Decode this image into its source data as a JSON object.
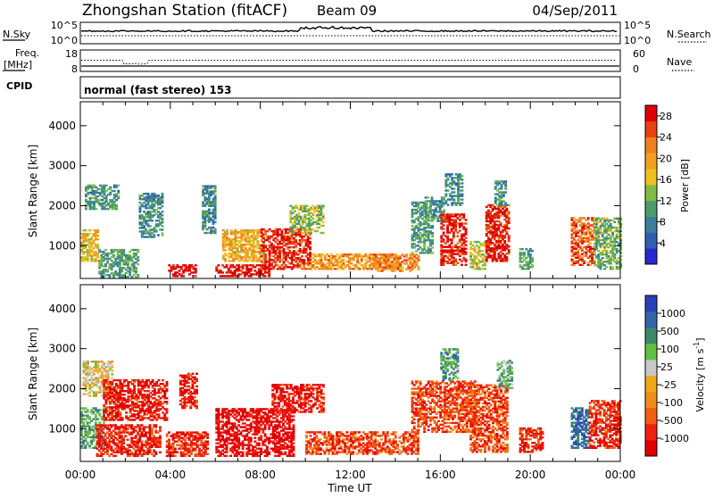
{
  "header": {
    "station": "Zhongshan Station (fitACF)",
    "beam": "Beam 09",
    "date": "04/Sep/2011"
  },
  "top_panels": {
    "nsky": {
      "label": "N.Sky",
      "tick_top": "10^5",
      "tick_bottom": "10^0"
    },
    "nsearch": {
      "label": "N.Search",
      "tick_top": "10^5",
      "tick_bottom": "10^0"
    },
    "freq": {
      "label_line1": "Freq.",
      "label_line2": "[MHz]",
      "tick_top": "18",
      "tick_bottom": "8"
    },
    "nave": {
      "label": "Nave",
      "tick_top": "60",
      "tick_bottom": "0"
    },
    "cpid": {
      "label": "CPID",
      "mode": "normal (fast stereo) 153"
    }
  },
  "chart_data": [
    {
      "type": "heatmap",
      "title": "",
      "xlabel": "",
      "ylabel": "Slant Range [km]",
      "ylim": [
        180,
        4600
      ],
      "yticks": [
        "1000",
        "2000",
        "3000",
        "4000"
      ],
      "colorbar": {
        "label": "Power [dB]",
        "ticks": [
          "4",
          "8",
          "12",
          "16",
          "20",
          "24",
          "28"
        ],
        "range": [
          0,
          30
        ],
        "colors": [
          "#2828d0",
          "#2e5fb0",
          "#3a7fa0",
          "#4e9b6e",
          "#7fbd45",
          "#f0c020",
          "#f2a020",
          "#f08020",
          "#e84010",
          "#dd0000"
        ]
      },
      "regions": [
        {
          "t0": 0.2,
          "t1": 1.7,
          "r0": 1900,
          "r1": 2500,
          "level": 0.32
        },
        {
          "t0": 0.0,
          "t1": 0.8,
          "r0": 600,
          "r1": 1400,
          "level": 0.58
        },
        {
          "t0": 0.8,
          "t1": 2.6,
          "r0": 200,
          "r1": 900,
          "level": 0.35
        },
        {
          "t0": 2.6,
          "t1": 3.6,
          "r0": 1200,
          "r1": 2300,
          "level": 0.3
        },
        {
          "t0": 3.9,
          "t1": 5.1,
          "r0": 220,
          "r1": 500,
          "level": 0.98
        },
        {
          "t0": 5.4,
          "t1": 6.0,
          "r0": 1300,
          "r1": 2500,
          "level": 0.3
        },
        {
          "t0": 6.0,
          "t1": 8.4,
          "r0": 220,
          "r1": 520,
          "level": 0.98
        },
        {
          "t0": 6.3,
          "t1": 8.1,
          "r0": 600,
          "r1": 1400,
          "level": 0.62
        },
        {
          "t0": 8.0,
          "t1": 10.2,
          "r0": 400,
          "r1": 1400,
          "level": 0.9
        },
        {
          "t0": 9.3,
          "t1": 10.8,
          "r0": 1300,
          "r1": 2000,
          "level": 0.45
        },
        {
          "t0": 10.2,
          "t1": 14.0,
          "r0": 400,
          "r1": 800,
          "level": 0.68
        },
        {
          "t0": 13.0,
          "t1": 15.0,
          "r0": 350,
          "r1": 800,
          "level": 0.72
        },
        {
          "t0": 14.7,
          "t1": 15.6,
          "r0": 800,
          "r1": 2100,
          "level": 0.35
        },
        {
          "t0": 15.3,
          "t1": 16.2,
          "r0": 1600,
          "r1": 2200,
          "level": 0.3
        },
        {
          "t0": 16.0,
          "t1": 17.1,
          "r0": 500,
          "r1": 1800,
          "level": 0.92
        },
        {
          "t0": 16.2,
          "t1": 17.0,
          "r0": 2000,
          "r1": 2800,
          "level": 0.3
        },
        {
          "t0": 17.3,
          "t1": 18.0,
          "r0": 400,
          "r1": 1100,
          "level": 0.5
        },
        {
          "t0": 18.0,
          "t1": 19.0,
          "r0": 600,
          "r1": 2000,
          "level": 0.92
        },
        {
          "t0": 18.4,
          "t1": 18.9,
          "r0": 2000,
          "r1": 2600,
          "level": 0.3
        },
        {
          "t0": 19.5,
          "t1": 20.1,
          "r0": 400,
          "r1": 900,
          "level": 0.35
        },
        {
          "t0": 21.8,
          "t1": 22.8,
          "r0": 500,
          "r1": 1700,
          "level": 0.82
        },
        {
          "t0": 22.8,
          "t1": 24.0,
          "r0": 400,
          "r1": 1700,
          "level": 0.4
        }
      ]
    },
    {
      "type": "heatmap",
      "title": "",
      "xlabel": "Time UT",
      "ylabel": "Slant Range [km]",
      "ylim": [
        180,
        4600
      ],
      "yticks": [
        "1000",
        "2000",
        "3000",
        "4000"
      ],
      "xticks": [
        "00:00",
        "04:00",
        "08:00",
        "12:00",
        "16:00",
        "20:00",
        "00:00"
      ],
      "colorbar": {
        "label": "Velocity [m s^-1]",
        "ticks": [
          "1000",
          "500",
          "100",
          "25",
          "-25",
          "-100",
          "-500",
          "-1000"
        ],
        "range": [
          -1200,
          1200
        ],
        "colors": [
          "#e00000",
          "#f02010",
          "#f06010",
          "#f08c18",
          "#f0a818",
          "#c8c8c8",
          "#60c040",
          "#3a8a6a",
          "#3366a8",
          "#2a40b8"
        ]
      },
      "regions": [
        {
          "t0": 0.1,
          "t1": 1.4,
          "r0": 1800,
          "r1": 2700,
          "level": 0.5
        },
        {
          "t0": 0.0,
          "t1": 1.0,
          "r0": 500,
          "r1": 1500,
          "level": 0.7
        },
        {
          "t0": 1.0,
          "t1": 3.8,
          "r0": 1200,
          "r1": 2200,
          "level": 0.1
        },
        {
          "t0": 0.7,
          "t1": 3.5,
          "r0": 300,
          "r1": 1100,
          "level": 0.12
        },
        {
          "t0": 3.8,
          "t1": 5.6,
          "r0": 300,
          "r1": 900,
          "level": 0.15
        },
        {
          "t0": 4.4,
          "t1": 5.2,
          "r0": 1500,
          "r1": 2400,
          "level": 0.08
        },
        {
          "t0": 6.0,
          "t1": 9.5,
          "r0": 300,
          "r1": 1500,
          "level": 0.05
        },
        {
          "t0": 8.5,
          "t1": 10.8,
          "r0": 1400,
          "r1": 2100,
          "level": 0.1
        },
        {
          "t0": 10.0,
          "t1": 15.0,
          "r0": 350,
          "r1": 900,
          "level": 0.2
        },
        {
          "t0": 14.7,
          "t1": 17.5,
          "r0": 900,
          "r1": 2200,
          "level": 0.2
        },
        {
          "t0": 16.0,
          "t1": 16.8,
          "r0": 2200,
          "r1": 3000,
          "level": 0.7
        },
        {
          "t0": 17.3,
          "t1": 19.0,
          "r0": 400,
          "r1": 2100,
          "level": 0.2
        },
        {
          "t0": 18.5,
          "t1": 19.2,
          "r0": 2000,
          "r1": 2700,
          "level": 0.65
        },
        {
          "t0": 19.5,
          "t1": 20.5,
          "r0": 400,
          "r1": 1000,
          "level": 0.12
        },
        {
          "t0": 21.8,
          "t1": 22.6,
          "r0": 500,
          "r1": 1500,
          "level": 0.85
        },
        {
          "t0": 22.6,
          "t1": 24.0,
          "r0": 500,
          "r1": 1700,
          "level": 0.15
        }
      ]
    }
  ]
}
